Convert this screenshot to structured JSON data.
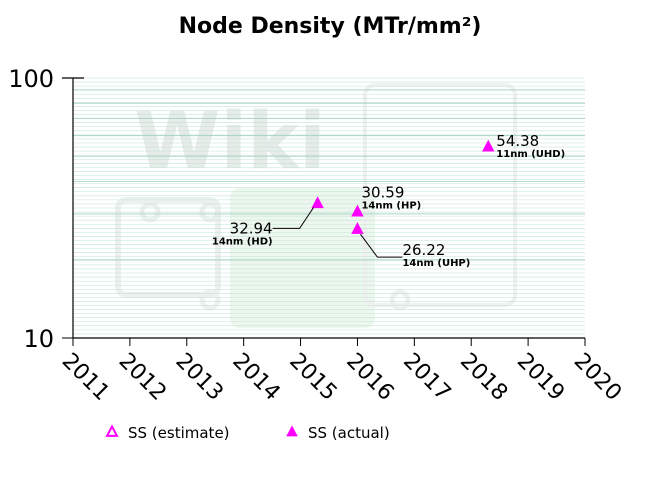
{
  "chart_data": {
    "type": "scatter",
    "title": "Node Density (MTr/mm²)",
    "y_scale": "log",
    "ylim": [
      10,
      100
    ],
    "xlim": [
      2011,
      2020
    ],
    "y_ticks": [
      "10",
      "100"
    ],
    "x_ticks": [
      "2011",
      "2012",
      "2013",
      "2014",
      "2015",
      "2016",
      "2017",
      "2018",
      "2019",
      "2020"
    ],
    "legend": [
      {
        "label": "SS (estimate)",
        "marker": "triangle-open",
        "color": "#ff00ff"
      },
      {
        "label": "SS (actual)",
        "marker": "triangle-filled",
        "color": "#ff00ff"
      }
    ],
    "legend_position": "bottom",
    "watermark": "Wiki",
    "points": [
      {
        "x": 2015.3,
        "y": 32.94,
        "value_label": "32.94",
        "node_label": "14nm (HD)",
        "series": "SS (actual)",
        "label_side": "left"
      },
      {
        "x": 2016.0,
        "y": 30.59,
        "value_label": "30.59",
        "node_label": "14nm (HP)",
        "series": "SS (actual)",
        "label_side": "right-up"
      },
      {
        "x": 2016.0,
        "y": 26.22,
        "value_label": "26.22",
        "node_label": "14nm (UHP)",
        "series": "SS (actual)",
        "label_side": "right-down"
      },
      {
        "x": 2018.3,
        "y": 54.38,
        "value_label": "54.38",
        "node_label": "11nm (UHD)",
        "series": "SS (actual)",
        "label_side": "right"
      }
    ],
    "colors": {
      "marker": "#ff00ff",
      "grid": "#b8e0d4",
      "axis": "#000000"
    }
  }
}
